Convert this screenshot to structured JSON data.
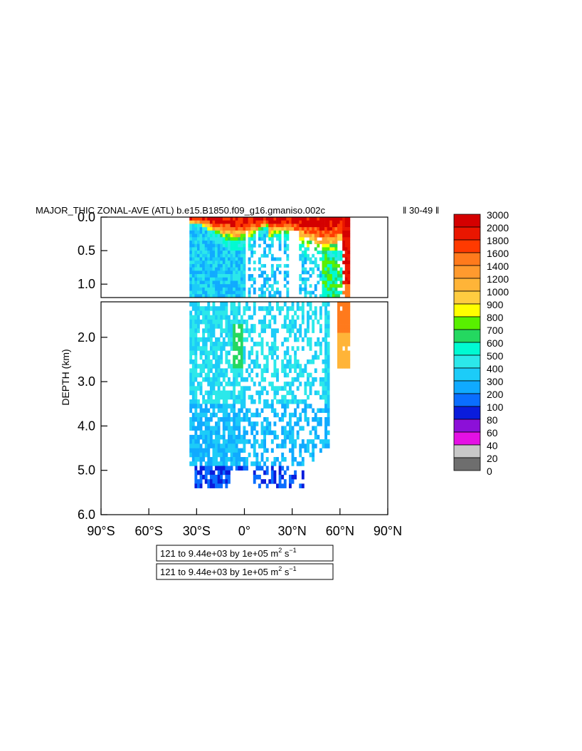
{
  "chart_data": {
    "type": "heatmap",
    "title": "MAJOR_THIC ZONAL-AVE (ATL) b.e15.B1850.f09_g16.gmaniso.002c",
    "title_suffix": "‖ 30-49 ‖",
    "ylabel": "DEPTH (km)",
    "xlabel": "",
    "x_ticks": [
      "90°S",
      "60°S",
      "30°S",
      "0°",
      "30°N",
      "60°N",
      "90°N"
    ],
    "xlim": [
      -90,
      90
    ],
    "upper_panel": {
      "ylim": [
        0.0,
        1.2
      ],
      "y_ticks": [
        "0.0",
        "0.5",
        "1.0"
      ]
    },
    "lower_panel": {
      "ylim": [
        1.2,
        6.0
      ],
      "y_ticks": [
        "2.0",
        "3.0",
        "4.0",
        "5.0",
        "6.0"
      ]
    },
    "colorbar": {
      "levels": [
        "3000",
        "2000",
        "1800",
        "1600",
        "1400",
        "1200",
        "1000",
        "900",
        "800",
        "700",
        "600",
        "500",
        "400",
        "300",
        "200",
        "100",
        "80",
        "60",
        "40",
        "20",
        "0"
      ],
      "colors": [
        "#d40000",
        "#ea1600",
        "#ff3a00",
        "#ff7a1c",
        "#ff9a2e",
        "#ffb438",
        "#ffcc40",
        "#ffff00",
        "#58f000",
        "#24d860",
        "#00fad2",
        "#2ce8ea",
        "#1cccf8",
        "#10aaff",
        "#0a6eff",
        "#0a1cdc",
        "#8c10d8",
        "#e410e4",
        "#c8c8c8",
        "#6e6e6e"
      ]
    },
    "info_boxes": [
      {
        "prefix": "121 to 9.44e+03 by 1e+05 m",
        "sup1": "2",
        "mid": " s",
        "sup2": "−1"
      },
      {
        "prefix": "121 to 9.44e+03 by 1e+05 m",
        "sup1": "2",
        "mid": " s",
        "sup2": "−1"
      }
    ]
  }
}
